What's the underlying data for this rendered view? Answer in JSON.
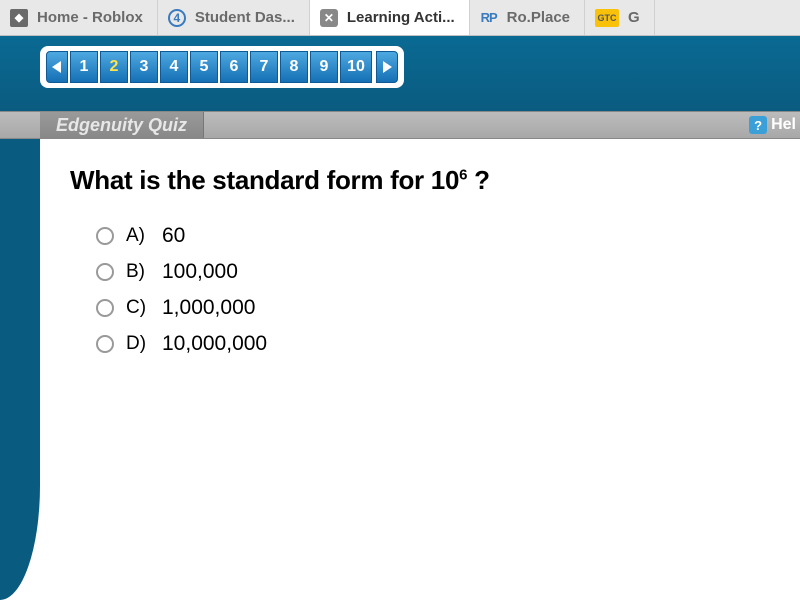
{
  "browser": {
    "tabs": [
      {
        "label": "Home - Roblox",
        "icon": "roblox",
        "icon_text": "◆",
        "active": false
      },
      {
        "label": "Student Das...",
        "icon": "dash",
        "icon_text": "4",
        "active": false
      },
      {
        "label": "Learning Acti...",
        "icon": "close",
        "icon_text": "✕",
        "active": true
      },
      {
        "label": "Ro.Place",
        "icon": "rp",
        "icon_text": "RP",
        "active": false
      },
      {
        "label": "G",
        "icon": "gtc",
        "icon_text": "GTC",
        "active": false
      }
    ]
  },
  "pager": {
    "count": 10,
    "current": 2,
    "numbers": [
      "1",
      "2",
      "3",
      "4",
      "5",
      "6",
      "7",
      "8",
      "9",
      "10"
    ]
  },
  "quiz_header": {
    "title": "Edgenuity Quiz",
    "help_label": "Hel",
    "help_icon": "?"
  },
  "question": {
    "prefix": "What is the standard form for 10",
    "exponent": "6",
    "suffix": " ?"
  },
  "options": [
    {
      "letter": "A)",
      "text": "60"
    },
    {
      "letter": "B)",
      "text": "100,000"
    },
    {
      "letter": "C)",
      "text": "1,000,000"
    },
    {
      "letter": "D)",
      "text": "10,000,000"
    }
  ],
  "colors": {
    "blue_bar_top": "#0a6a93",
    "blue_bar_bottom": "#0a5b80",
    "pager_btn_top": "#4ea8e0",
    "pager_btn_bottom": "#1570b5",
    "pager_current_text": "#ffe34d",
    "tabs_bg": "#e8e8e8",
    "tab_text": "#6a6a6a",
    "quiz_hdr_bg": "#a8a8a8",
    "help_badge": "#3ba0d8"
  },
  "typography": {
    "tab_fontsize": 15,
    "pager_fontsize": 16,
    "quiz_title_fontsize": 18,
    "question_fontsize": 26,
    "option_fontsize": 21
  }
}
